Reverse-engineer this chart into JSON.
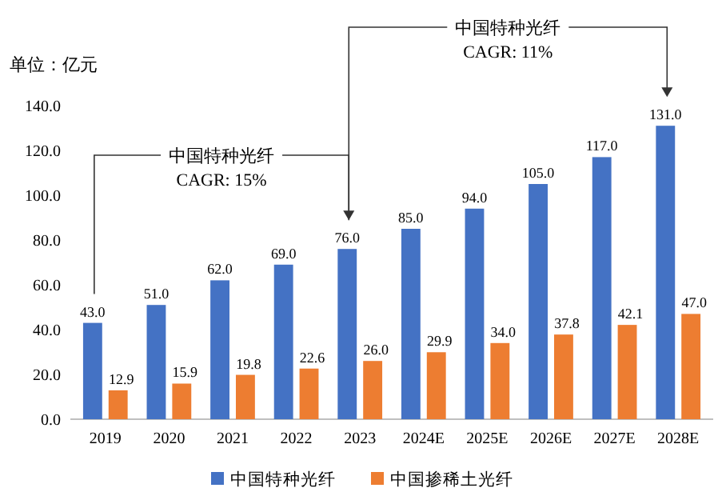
{
  "chart_data": {
    "type": "bar",
    "ylabel": "单位：亿元",
    "categories": [
      "2019",
      "2020",
      "2021",
      "2022",
      "2023",
      "2024E",
      "2025E",
      "2026E",
      "2027E",
      "2028E"
    ],
    "series": [
      {
        "name": "中国特种光纤",
        "color": "#4472c4",
        "values": [
          43,
          51,
          62,
          69,
          76,
          85,
          94,
          105,
          117,
          131
        ],
        "value_labels": [
          "43.0",
          "51.0",
          "62.0",
          "69.0",
          "76.0",
          "85.0",
          "94.0",
          "105.0",
          "117.0",
          "131.0"
        ]
      },
      {
        "name": "中国掺稀土光纤",
        "color": "#ed7d31",
        "values": [
          12.9,
          15.9,
          19.8,
          22.6,
          26.0,
          29.9,
          34.0,
          37.8,
          42.1,
          47.0
        ],
        "value_labels": [
          "12.9",
          "15.9",
          "19.8",
          "22.6",
          "26.0",
          "29.9",
          "34.0",
          "37.8",
          "42.1",
          "47.0"
        ]
      }
    ],
    "ylim": [
      0,
      140
    ],
    "yticks": [
      {
        "value": 0,
        "label": "0.0"
      },
      {
        "value": 20,
        "label": "20.0"
      },
      {
        "value": 40,
        "label": "40.0"
      },
      {
        "value": 60,
        "label": "60.0"
      },
      {
        "value": 80,
        "label": "80.0"
      },
      {
        "value": 100,
        "label": "100.0"
      },
      {
        "value": 120,
        "label": "120.0"
      },
      {
        "value": 140,
        "label": "140.0"
      }
    ],
    "annotations": [
      "中国特种光纤\nCAGR:  15%",
      "中国特种光纤\nCAGR:  11%"
    ],
    "legend": "bottom",
    "grid": false
  }
}
